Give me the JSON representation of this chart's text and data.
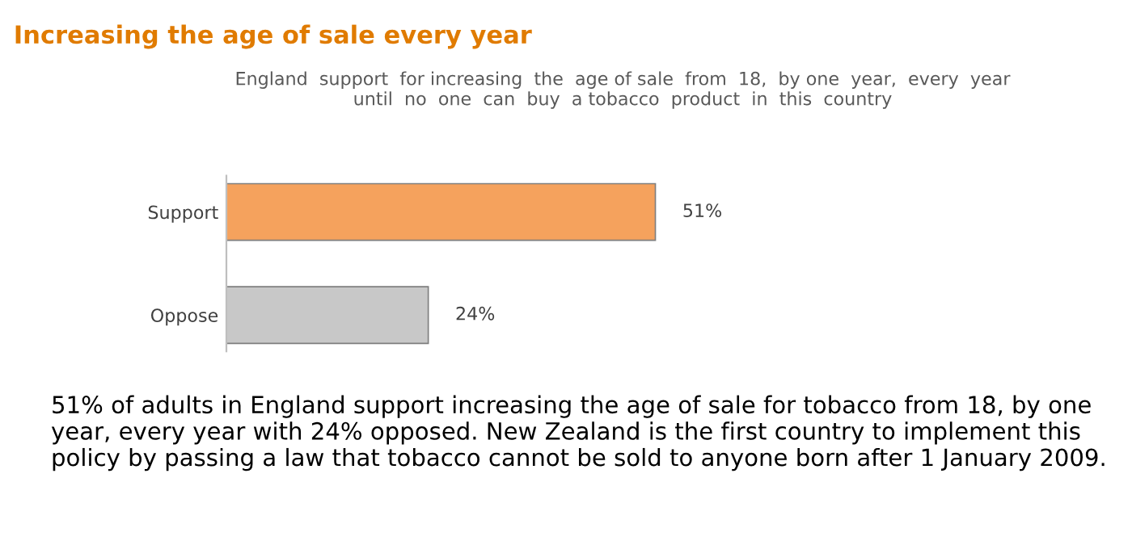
{
  "chart_data": {
    "type": "bar",
    "orientation": "horizontal",
    "title": "Increasing the age of sale every year",
    "subtitle": "England  support  for increasing  the  age of sale  from  18,  by one  year,  every  year\nuntil  no  one  can  buy  a tobacco  product  in  this  country",
    "categories": [
      "Support",
      "Oppose"
    ],
    "values": [
      51,
      24
    ],
    "colors": [
      "#f5a25d",
      "#c8c8c8"
    ],
    "value_labels": [
      "51%",
      "24%"
    ],
    "annotations": [
      "51% of adults in England support increasing the age of sale for tobacco from 18, by one year, every year with 24% opposed. New Zealand is the first country to implement this policy by passing a law that tobacco cannot be sold to anyone born after 1 January 2009."
    ],
    "grid": false,
    "legend": false
  }
}
